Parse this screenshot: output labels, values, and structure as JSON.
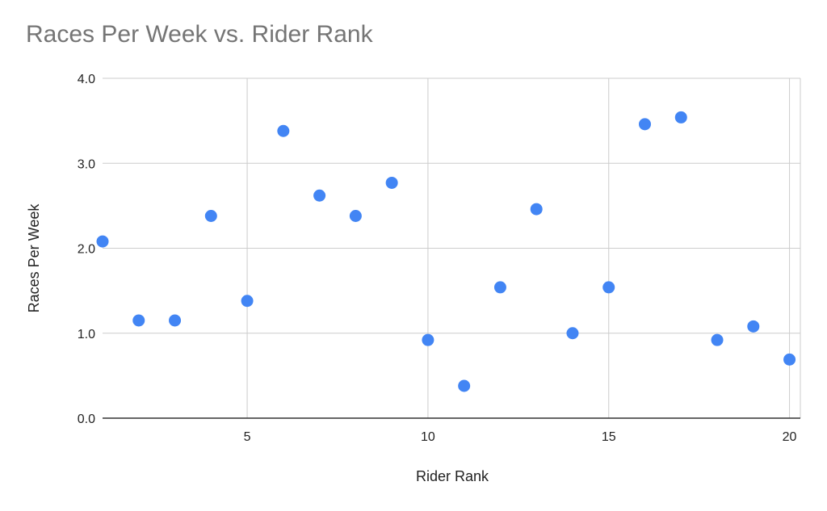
{
  "chart_data": {
    "type": "scatter",
    "title": "Races Per Week vs. Rider Rank",
    "xlabel": "Rider Rank",
    "ylabel": "Races Per Week",
    "xlim": [
      1,
      20.3
    ],
    "ylim": [
      0,
      4
    ],
    "x_ticks": [
      5,
      10,
      15,
      20
    ],
    "y_ticks": [
      0,
      1,
      2,
      3,
      4
    ],
    "y_tick_labels": [
      "0.0",
      "1.0",
      "2.0",
      "3.0",
      "4.0"
    ],
    "grid": true,
    "legend": "none",
    "marker_color": "#4285f4",
    "points": [
      {
        "x": 1,
        "y": 2.08
      },
      {
        "x": 2,
        "y": 1.15
      },
      {
        "x": 3,
        "y": 1.15
      },
      {
        "x": 4,
        "y": 2.38
      },
      {
        "x": 5,
        "y": 1.38
      },
      {
        "x": 6,
        "y": 3.38
      },
      {
        "x": 7,
        "y": 2.62
      },
      {
        "x": 8,
        "y": 2.38
      },
      {
        "x": 9,
        "y": 2.77
      },
      {
        "x": 10,
        "y": 0.92
      },
      {
        "x": 11,
        "y": 0.38
      },
      {
        "x": 12,
        "y": 1.54
      },
      {
        "x": 13,
        "y": 2.46
      },
      {
        "x": 14,
        "y": 1.0
      },
      {
        "x": 15,
        "y": 1.54
      },
      {
        "x": 16,
        "y": 3.46
      },
      {
        "x": 17,
        "y": 3.54
      },
      {
        "x": 18,
        "y": 0.92
      },
      {
        "x": 19,
        "y": 1.08
      },
      {
        "x": 20,
        "y": 0.69
      }
    ]
  }
}
